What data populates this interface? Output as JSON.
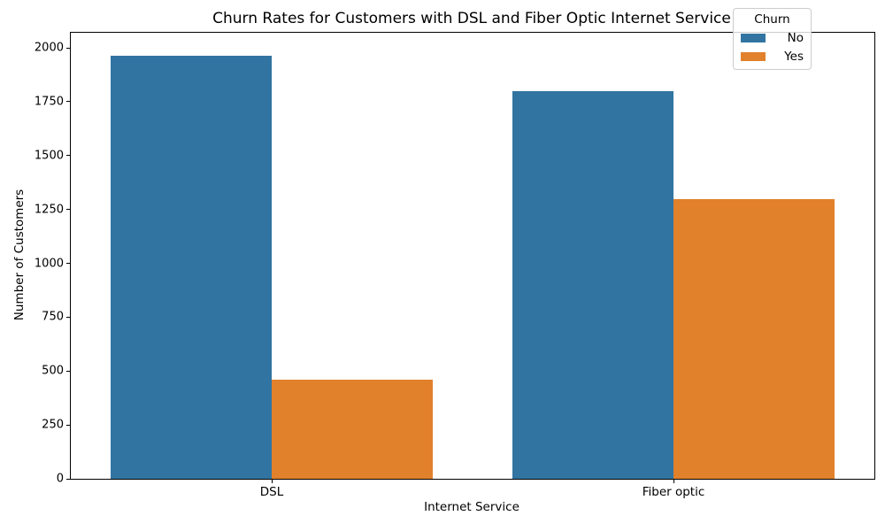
{
  "chart_data": {
    "type": "bar",
    "title": "Churn Rates for Customers with DSL and Fiber Optic Internet Service",
    "xlabel": "Internet Service",
    "ylabel": "Number of Customers",
    "categories": [
      "DSL",
      "Fiber optic"
    ],
    "series": [
      {
        "name": "No",
        "color": "#3274A1",
        "values": [
          1962,
          1799
        ]
      },
      {
        "name": "Yes",
        "color": "#E1812C",
        "values": [
          459,
          1297
        ]
      }
    ],
    "ylim": [
      0,
      2070
    ],
    "yticks": [
      0,
      250,
      500,
      750,
      1000,
      1250,
      1500,
      1750,
      2000
    ],
    "legend": {
      "title": "Churn",
      "position": "upper right"
    },
    "grid": false,
    "colors": {
      "axis": "#000000",
      "legend_border": "#cccccc",
      "background": "#ffffff"
    }
  }
}
